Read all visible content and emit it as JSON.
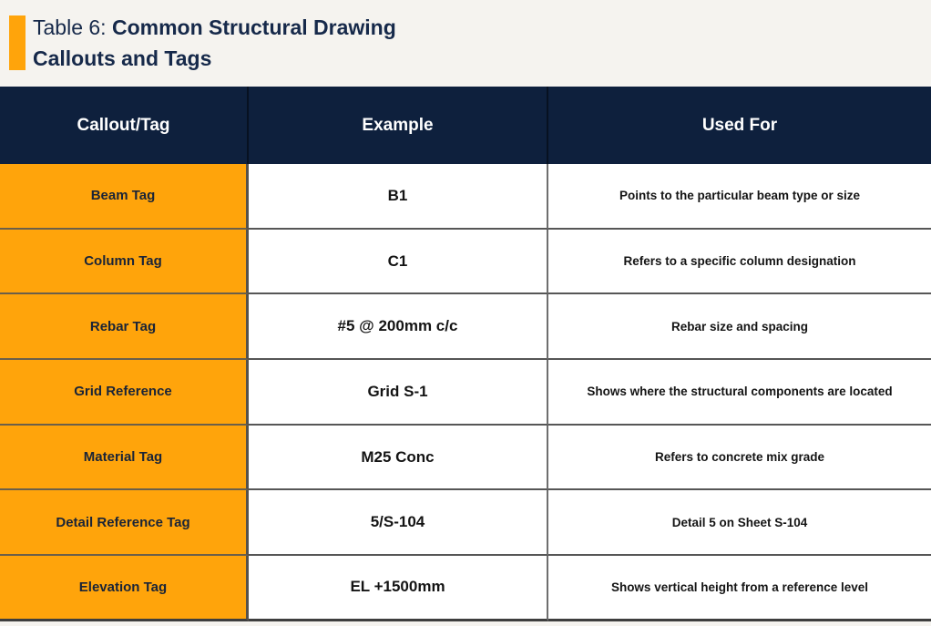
{
  "title": {
    "prefix": "Table 6: ",
    "bold": "Common Structural Drawing Callouts and Tags"
  },
  "colors": {
    "accent_orange": "#ffa40b",
    "header_navy": "#0e203d",
    "title_navy": "#16294a",
    "page_background": "#f5f3ef",
    "border_gray": "#565656"
  },
  "table": {
    "headers": [
      "Callout/Tag",
      "Example",
      "Used For"
    ],
    "rows": [
      {
        "callout": "Beam Tag",
        "example": "B1",
        "used_for": "Points to the particular beam type or size"
      },
      {
        "callout": "Column Tag",
        "example": "C1",
        "used_for": "Refers to a specific column designation"
      },
      {
        "callout": "Rebar Tag",
        "example": "#5 @ 200mm c/c",
        "used_for": "Rebar size and spacing"
      },
      {
        "callout": "Grid Reference",
        "example": "Grid S-1",
        "used_for": "Shows where the structural components are located"
      },
      {
        "callout": "Material Tag",
        "example": "M25 Conc",
        "used_for": "Refers to concrete mix grade"
      },
      {
        "callout": "Detail Reference Tag",
        "example": "5/S-104",
        "used_for": "Detail 5 on Sheet S-104"
      },
      {
        "callout": "Elevation Tag",
        "example": "EL +1500mm",
        "used_for": "Shows vertical height from a reference level"
      }
    ]
  }
}
